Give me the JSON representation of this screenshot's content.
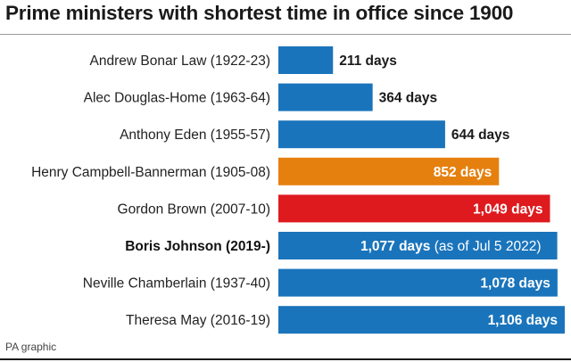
{
  "chart_data": {
    "type": "bar",
    "orientation": "horizontal",
    "title": "Prime ministers with shortest time in office since 1900",
    "categories": [
      "Andrew Bonar Law (1922-23)",
      "Alec Douglas-Home (1963-64)",
      "Anthony Eden (1955-57)",
      "Henry Campbell-Bannerman (1905-08)",
      "Gordon Brown (2007-10)",
      "Boris Johnson (2019-)",
      "Neville Chamberlain (1937-40)",
      "Theresa May (2016-19)"
    ],
    "values": [
      211,
      364,
      644,
      852,
      1049,
      1077,
      1078,
      1106
    ],
    "value_labels": [
      "211 days",
      "364 days",
      "644 days",
      "852 days",
      "1,049 days",
      "1,077 days",
      "1,078 days",
      "1,106 days"
    ],
    "value_notes": [
      "",
      "",
      "",
      "",
      "",
      "(as of Jul 5 2022)",
      "",
      ""
    ],
    "bar_colors": [
      "#1a74bb",
      "#1a74bb",
      "#1a74bb",
      "#e5800f",
      "#de1a1f",
      "#1a74bb",
      "#1a74bb",
      "#1a74bb"
    ],
    "highlight_index": 5,
    "xlim": [
      0,
      1106
    ],
    "grid": false,
    "legend": "none"
  },
  "source": "PA graphic"
}
